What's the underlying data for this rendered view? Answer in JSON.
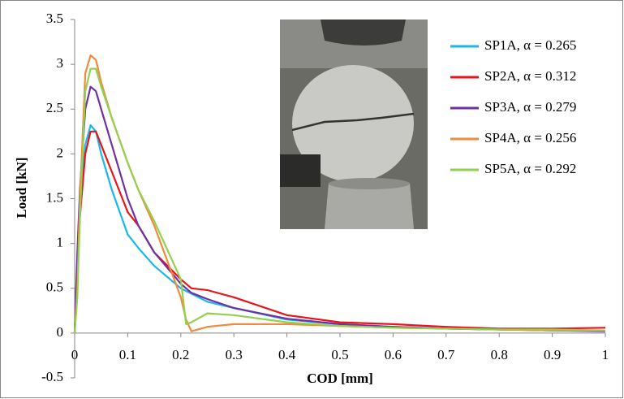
{
  "chart_data": {
    "type": "line",
    "xlabel": "COD [mm]",
    "ylabel": "Load [kN]",
    "x": [
      0,
      0.005,
      0.01,
      0.02,
      0.03,
      0.04,
      0.05,
      0.07,
      0.1,
      0.12,
      0.15,
      0.2,
      0.21,
      0.22,
      0.25,
      0.3,
      0.4,
      0.5,
      0.6,
      0.7,
      0.8,
      0.9,
      1
    ],
    "series": [
      {
        "name": "SP1A, α = 0.265",
        "color": "#1ab7ea",
        "values": [
          0,
          0.8,
          1.5,
          2.1,
          2.32,
          2.25,
          2.0,
          1.6,
          1.1,
          0.95,
          0.75,
          0.5,
          0.47,
          0.44,
          0.35,
          0.28,
          0.15,
          0.1,
          0.07,
          0.05,
          0.04,
          0.03,
          0.03
        ]
      },
      {
        "name": "SP2A, α = 0.312",
        "color": "#e8141c",
        "values": [
          0,
          0.7,
          1.3,
          2.0,
          2.25,
          2.25,
          2.1,
          1.8,
          1.35,
          1.2,
          0.9,
          0.6,
          0.55,
          0.5,
          0.48,
          0.4,
          0.2,
          0.12,
          0.1,
          0.07,
          0.05,
          0.05,
          0.06
        ]
      },
      {
        "name": "SP3A, α = 0.279",
        "color": "#7030a0",
        "values": [
          0,
          0.9,
          1.6,
          2.5,
          2.75,
          2.7,
          2.5,
          2.1,
          1.5,
          1.2,
          0.9,
          0.55,
          0.5,
          0.45,
          0.38,
          0.28,
          0.16,
          0.1,
          0.07,
          0.05,
          0.04,
          0.03,
          0.02
        ]
      },
      {
        "name": "SP4A, α = 0.256",
        "color": "#f08a3c",
        "values": [
          0,
          0.5,
          1.5,
          2.9,
          3.1,
          3.05,
          2.8,
          2.4,
          1.9,
          1.6,
          1.2,
          0.4,
          0.15,
          0.02,
          0.07,
          0.1,
          0.1,
          0.08,
          0.06,
          0.05,
          0.04,
          0.03,
          0.03
        ]
      },
      {
        "name": "SP5A, α = 0.292",
        "color": "#92d050",
        "values": [
          0,
          0.4,
          1.3,
          2.7,
          2.95,
          2.95,
          2.75,
          2.4,
          1.9,
          1.6,
          1.25,
          0.6,
          0.1,
          0.12,
          0.22,
          0.2,
          0.12,
          0.08,
          0.06,
          0.05,
          0.04,
          0.04,
          0.03
        ]
      }
    ],
    "xlim": [
      0,
      1
    ],
    "xticks": [
      0,
      0.1,
      0.2,
      0.3,
      0.4,
      0.5,
      0.6,
      0.7,
      0.8,
      0.9,
      1
    ],
    "ylim": [
      -0.5,
      3.5
    ],
    "yticks": [
      -0.5,
      0,
      0.5,
      1,
      1.5,
      2,
      2.5,
      3,
      3.5
    ],
    "grid": false,
    "legend": "upper right"
  }
}
